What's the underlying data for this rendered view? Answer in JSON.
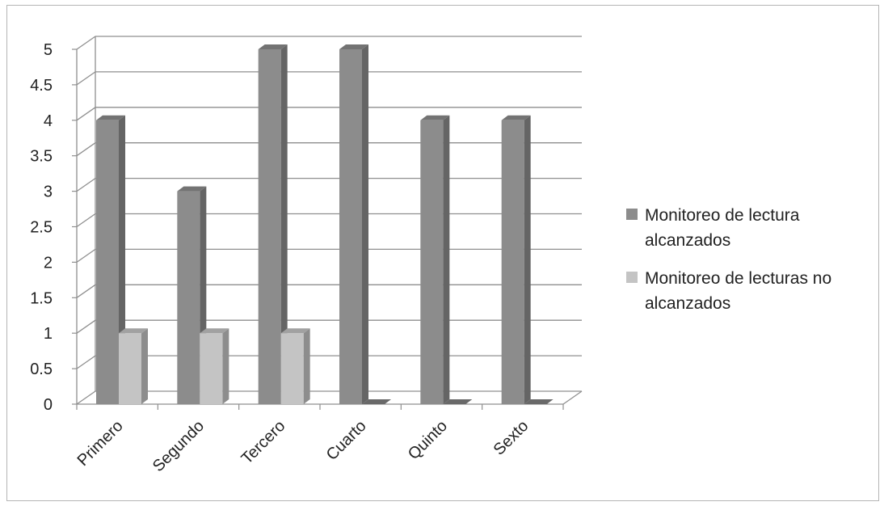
{
  "chart_data": {
    "type": "bar",
    "title": "",
    "xlabel": "",
    "ylabel": "",
    "categories": [
      "Primero",
      "Segundo",
      "Tercero",
      "Cuarto",
      "Quinto",
      "Sexto"
    ],
    "series": [
      {
        "name": "Monitoreo de lectura alcanzados",
        "values": [
          4,
          3,
          5,
          5,
          4,
          4
        ],
        "color": "#8c8c8c"
      },
      {
        "name": "Monitoreo de lecturas no alcanzados",
        "values": [
          1,
          1,
          1,
          0,
          0,
          0
        ],
        "color": "#c4c4c4"
      }
    ],
    "ylim": [
      0,
      5
    ],
    "y_ticks": [
      "0",
      "0.5",
      "1",
      "1.5",
      "2",
      "2.5",
      "3",
      "3.5",
      "4",
      "4.5",
      "5"
    ],
    "grid": true,
    "style": "3d-clustered-column",
    "legend_position": "right",
    "legend_lines": [
      [
        "Monitoreo de lectura",
        "alcanzados"
      ],
      [
        "Monitoreo de lecturas no",
        "alcanzados"
      ]
    ]
  }
}
